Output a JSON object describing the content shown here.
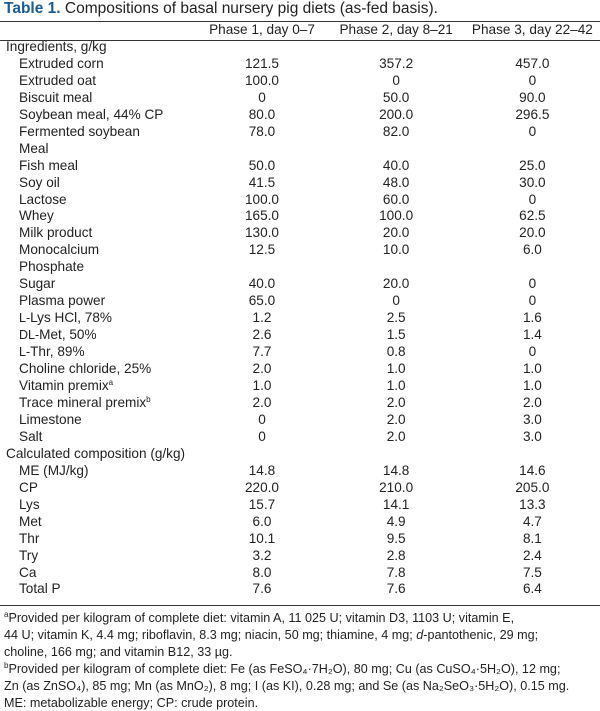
{
  "title": {
    "label": "Table 1.",
    "text": "Compositions of basal nursery pig diets (as-fed basis)."
  },
  "headers": [
    "",
    "Phase 1, day 0–7",
    "Phase 2, day 8–21",
    "Phase 3, day 22–42"
  ],
  "ingredients_heading": "Ingredients, g/kg",
  "ingredients": [
    {
      "n": "Extruded corn",
      "v": [
        "121.5",
        "357.2",
        "457.0"
      ]
    },
    {
      "n": "Extruded oat",
      "v": [
        "100.0",
        "0",
        "0"
      ]
    },
    {
      "n": "Biscuit meal",
      "v": [
        "0",
        "50.0",
        "90.0"
      ]
    },
    {
      "n": "Soybean meal, 44% CP",
      "v": [
        "80.0",
        "200.0",
        "296.5"
      ]
    },
    {
      "n": "Fermented soybean",
      "cont": "Meal",
      "v": [
        "78.0",
        "82.0",
        "0"
      ]
    },
    {
      "n": "Fish meal",
      "v": [
        "50.0",
        "40.0",
        "25.0"
      ]
    },
    {
      "n": "Soy oil",
      "v": [
        "41.5",
        "48.0",
        "30.0"
      ]
    },
    {
      "n": "Lactose",
      "v": [
        "100.0",
        "60.0",
        "0"
      ]
    },
    {
      "n": "Whey",
      "v": [
        "165.0",
        "100.0",
        "62.5"
      ]
    },
    {
      "n": "Milk product",
      "v": [
        "130.0",
        "20.0",
        "20.0"
      ]
    },
    {
      "n": "Monocalcium",
      "cont": "Phosphate",
      "v": [
        "12.5",
        "10.0",
        "6.0"
      ]
    },
    {
      "n": "Sugar",
      "v": [
        "40.0",
        "20.0",
        "0"
      ]
    },
    {
      "n": "Plasma power",
      "v": [
        "65.0",
        "0",
        "0"
      ]
    },
    {
      "n": "Lys HCl, 78%",
      "pre": "L-",
      "v": [
        "1.2",
        "2.5",
        "1.6"
      ]
    },
    {
      "n": "Met, 50%",
      "pre": "DL-",
      "v": [
        "2.6",
        "1.5",
        "1.4"
      ]
    },
    {
      "n": "Thr, 89%",
      "pre": "L-",
      "v": [
        "7.7",
        "0.8",
        "0"
      ]
    },
    {
      "n": "Choline chloride, 25%",
      "v": [
        "2.0",
        "1.0",
        "1.0"
      ]
    },
    {
      "n": "Vitamin premix",
      "sup": "a",
      "v": [
        "1.0",
        "1.0",
        "1.0"
      ]
    },
    {
      "n": "Trace mineral premix",
      "sup": "b",
      "v": [
        "2.0",
        "2.0",
        "2.0"
      ]
    },
    {
      "n": "Limestone",
      "v": [
        "0",
        "2.0",
        "3.0"
      ]
    },
    {
      "n": "Salt",
      "v": [
        "0",
        "2.0",
        "3.0"
      ]
    }
  ],
  "calc_heading": "Calculated composition (g/kg)",
  "calculated": [
    {
      "n": "ME (MJ/kg)",
      "v": [
        "14.8",
        "14.8",
        "14.6"
      ]
    },
    {
      "n": "CP",
      "v": [
        "220.0",
        "210.0",
        "205.0"
      ]
    },
    {
      "n": "Lys",
      "v": [
        "15.7",
        "14.1",
        "13.3"
      ]
    },
    {
      "n": "Met",
      "v": [
        "6.0",
        "4.9",
        "4.7"
      ]
    },
    {
      "n": "Thr",
      "v": [
        "10.1",
        "9.5",
        "8.1"
      ]
    },
    {
      "n": "Try",
      "v": [
        "3.2",
        "2.8",
        "2.4"
      ]
    },
    {
      "n": "Ca",
      "v": [
        "8.0",
        "7.8",
        "7.5"
      ]
    },
    {
      "n": "Total P",
      "v": [
        "7.6",
        "7.6",
        "6.4"
      ]
    }
  ],
  "footnotes": {
    "a": {
      "mark": "a",
      "line1": "Provided per kilogram of complete diet: vitamin A, 11 025 U; vitamin D3, 1103 U; vitamin E,",
      "line2": "44 U; vitamin K, 4.4 mg; riboflavin, 8.3 mg; niacin, 50 mg; thiamine, 4 mg; ",
      "line2_it": "d",
      "line2_end": "-pantothenic, 29 mg;",
      "line3": "choline, 166 mg; and vitamin B12, 33 µg."
    },
    "b": {
      "mark": "b",
      "line1": "Provided per kilogram of complete diet: Fe (as FeSO₄·7H₂O), 80 mg; Cu (as CuSO₄·5H₂O), 12 mg;",
      "line2": "Zn (as ZnSO₄), 85 mg; Mn (as MnO₂), 8 mg; I (as KI), 0.28 mg; and Se (as Na₂SeO₃·5H₂O), 0.15 mg."
    },
    "abbrev": "ME: metabolizable energy; CP: crude protein."
  }
}
